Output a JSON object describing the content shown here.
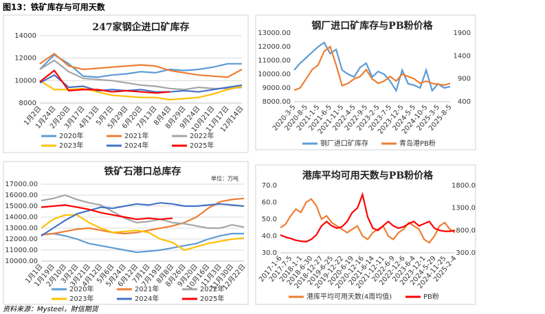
{
  "header": {
    "title": "图13：铁矿库存与可用天数"
  },
  "source": "资料来源：Mysteel，財信期货",
  "chart_data": [
    {
      "type": "line",
      "title": "247家钢企进口矿库存",
      "grid": true,
      "categories": [
        "1月2日",
        "1月24日",
        "2月20日",
        "3月17日",
        "4月13日",
        "5月7日",
        "5月29日",
        "6月20日",
        "7月13日",
        "8月4日",
        "8月29日",
        "9月24日",
        "10月21日",
        "11月17日",
        "12月14日"
      ],
      "ylim": [
        8000,
        14000
      ],
      "yticks": [
        8000,
        10000,
        12000,
        14000
      ],
      "series": [
        {
          "name": "2020年",
          "color": "#5b9bd5",
          "values": [
            11000,
            12300,
            11500,
            10400,
            10300,
            10500,
            10600,
            10800,
            10700,
            11000,
            10900,
            11000,
            11200,
            11500,
            11500
          ]
        },
        {
          "name": "2021年",
          "color": "#ed7d31",
          "values": [
            11500,
            12400,
            11300,
            11000,
            11100,
            11200,
            11300,
            11400,
            11300,
            10900,
            10700,
            10500,
            10400,
            10300,
            11000
          ]
        },
        {
          "name": "2022年",
          "color": "#a5a5a5",
          "values": [
            11000,
            11800,
            10800,
            10200,
            10100,
            10000,
            9800,
            9600,
            9500,
            9300,
            9200,
            9400,
            9300,
            9300,
            9400
          ]
        },
        {
          "name": "2023年",
          "color": "#ffc000",
          "values": [
            10000,
            9200,
            9200,
            9300,
            9000,
            8700,
            8600,
            8500,
            8500,
            8300,
            8400,
            8500,
            8800,
            9200,
            9500
          ]
        },
        {
          "name": "2024年",
          "color": "#4472c4",
          "values": [
            9800,
            10500,
            9400,
            9500,
            9100,
            9200,
            9100,
            9200,
            9000,
            9000,
            9100,
            9000,
            9200,
            9400,
            9600
          ]
        },
        {
          "name": "2025年",
          "color": "#ff0000",
          "values": [
            9900,
            10900,
            9100,
            9200,
            9200,
            9000,
            9100,
            9000,
            8900,
            9000,
            null,
            null,
            null,
            null,
            null
          ]
        }
      ]
    },
    {
      "type": "line",
      "title": "钢厂进口矿库存与PB粉价格",
      "grid": false,
      "categories": [
        "2020-3-5",
        null,
        "2020-8-5",
        null,
        "2021-1-5",
        null,
        "2021-6-5",
        null,
        "2021-11-5",
        null,
        "2022-4-5",
        null,
        "2022-9-5",
        null,
        "2023-2-5",
        null,
        "2023-7-5",
        null,
        "2023-12-5",
        null,
        "2024-5-5",
        null,
        "2024-10-5",
        null,
        "2025-3-5",
        null,
        "2025-8-5"
      ],
      "ylim": [
        8000,
        13000
      ],
      "yticks": [
        {
          "value": 8000,
          "label": "8000.00"
        },
        {
          "value": 9000,
          "label": "9000.00"
        },
        {
          "value": 10000,
          "label": "10000.00"
        },
        {
          "value": 11000,
          "label": "11000.00"
        },
        {
          "value": 12000,
          "label": "12000.00"
        },
        {
          "value": 13000,
          "label": "13000.00"
        }
      ],
      "y2lim": [
        400,
        1900
      ],
      "y2ticks": [
        400,
        900,
        1400,
        1900
      ],
      "series": [
        {
          "name": "钢厂进口矿库存",
          "color": "#5b9bd5",
          "values": [
            10300,
            10800,
            11200,
            11600,
            12000,
            12300,
            11500,
            11800,
            10300,
            10000,
            9800,
            10500,
            10800,
            9800,
            10200,
            10000,
            9500,
            8800,
            10300,
            9300,
            9200,
            9000,
            10300,
            8800,
            9300,
            9000,
            9100
          ]
        },
        {
          "name": "青岛港PB粉",
          "color": "#ed7d31",
          "axis": "y2",
          "values": [
            650,
            700,
            900,
            1100,
            1200,
            1500,
            1600,
            1200,
            750,
            800,
            900,
            950,
            1100,
            900,
            800,
            850,
            950,
            850,
            1000,
            950,
            900,
            800,
            850,
            800,
            780,
            760,
            800
          ]
        }
      ]
    },
    {
      "type": "line",
      "title": "铁矿石港口总库存",
      "annotation": "单位：万吨",
      "grid": true,
      "categories": [
        "1月1日",
        "1月19日",
        "2月10日",
        "3月2日",
        "3月21日",
        "4月12日",
        "5月6日",
        "5月24日",
        "6月12日",
        "7月1日",
        "7月19日",
        "8月8日",
        "8月26日",
        "9月20日",
        "10月16日",
        "11月3日",
        "11月30日",
        "12月22日"
      ],
      "ylim": [
        10000,
        17000
      ],
      "yticks": [
        {
          "value": 10000,
          "label": "10000.00"
        },
        {
          "value": 11000,
          "label": "11000.00"
        },
        {
          "value": 12000,
          "label": "12000.00"
        },
        {
          "value": 13000,
          "label": "13000.00"
        },
        {
          "value": 14000,
          "label": "14000.00"
        },
        {
          "value": 15000,
          "label": "15000.00"
        },
        {
          "value": 16000,
          "label": "16000.00"
        },
        {
          "value": 17000,
          "label": "17000.00"
        }
      ],
      "series": [
        {
          "name": "2020年",
          "color": "#5b9bd5",
          "values": [
            12400,
            12500,
            12300,
            12000,
            11600,
            11400,
            11200,
            11000,
            10800,
            10900,
            11000,
            11200,
            11400,
            11600,
            12000,
            12300,
            12500,
            12500
          ]
        },
        {
          "name": "2021年",
          "color": "#ed7d31",
          "values": [
            12400,
            12500,
            12700,
            12900,
            13000,
            12800,
            12600,
            12500,
            12600,
            12800,
            13000,
            13200,
            13500,
            14000,
            14800,
            15400,
            15600,
            15700
          ]
        },
        {
          "name": "2022年",
          "color": "#a5a5a5",
          "values": [
            15500,
            15700,
            16000,
            15600,
            15300,
            15100,
            14500,
            13900,
            13500,
            13600,
            13800,
            13500,
            13400,
            13200,
            13000,
            13000,
            13300,
            13100
          ]
        },
        {
          "name": "2023年",
          "color": "#ffc000",
          "values": [
            13000,
            13800,
            14200,
            14200,
            13500,
            13000,
            12600,
            12700,
            12800,
            12600,
            12000,
            11700,
            11000,
            11300,
            11600,
            11800,
            12000,
            12100
          ]
        },
        {
          "name": "2024年",
          "color": "#4472c4",
          "values": [
            12300,
            13000,
            13700,
            14300,
            14600,
            14900,
            14800,
            15000,
            15200,
            15100,
            15300,
            15200,
            15000,
            15000,
            15100,
            15200,
            15100,
            15000
          ]
        },
        {
          "name": "2025年",
          "color": "#ff0000",
          "values": [
            14900,
            15000,
            15100,
            14900,
            14700,
            14400,
            14200,
            14000,
            13800,
            13900,
            13800,
            13900,
            null,
            null,
            null,
            null,
            null,
            null
          ]
        }
      ]
    },
    {
      "type": "line",
      "title": "港库平均可用天数与PB粉价格",
      "grid": false,
      "categories": [
        "2017-1-6",
        null,
        "2017-7-5",
        null,
        "2018-1-1",
        null,
        "2018-6-30",
        null,
        "2018-12-27",
        null,
        "2019-6-25",
        null,
        "2019-12-22",
        null,
        "2020-6-19",
        null,
        "2020-12-16",
        null,
        "2021-6-14",
        null,
        "2021-12-11",
        null,
        "2022-6-9",
        null,
        "2022-12-6",
        null,
        "2023-6-4",
        null,
        "2023-12-1",
        null,
        "2024-5-29",
        null,
        "2024-11-25",
        null,
        "2025-2-4"
      ],
      "ylim": [
        30,
        70
      ],
      "yticks": [
        {
          "value": 30,
          "label": "30.0"
        },
        {
          "value": 40,
          "label": "40.0"
        },
        {
          "value": 50,
          "label": "50.0"
        },
        {
          "value": 60,
          "label": "60.0"
        },
        {
          "value": 70,
          "label": "70.0"
        }
      ],
      "y2lim": [
        300,
        1800
      ],
      "y2ticks": [
        {
          "value": 300,
          "label": "300.0"
        },
        {
          "value": 800,
          "label": "800.0"
        },
        {
          "value": 1300,
          "label": "1300.0"
        },
        {
          "value": 1800,
          "label": "1800.0"
        }
      ],
      "series": [
        {
          "name": "港库平均可用天数(4周均值)",
          "color": "#ed7d31",
          "values": [
            45,
            47,
            52,
            56,
            54,
            60,
            62,
            58,
            50,
            52,
            48,
            46,
            44,
            42,
            44,
            46,
            40,
            38,
            42,
            44,
            46,
            40,
            38,
            42,
            44,
            48,
            46,
            44,
            38,
            36,
            40,
            46,
            48,
            44,
            42
          ]
        },
        {
          "name": "PB粉",
          "color": "#ff0000",
          "axis": "y2",
          "values": [
            700,
            650,
            620,
            580,
            560,
            550,
            600,
            700,
            900,
            1000,
            900,
            850,
            880,
            1000,
            1200,
            1300,
            1600,
            1100,
            850,
            800,
            900,
            1000,
            900,
            850,
            880,
            950,
            1000,
            900,
            950,
            1000,
            850,
            800,
            780,
            780,
            800
          ]
        }
      ]
    }
  ]
}
